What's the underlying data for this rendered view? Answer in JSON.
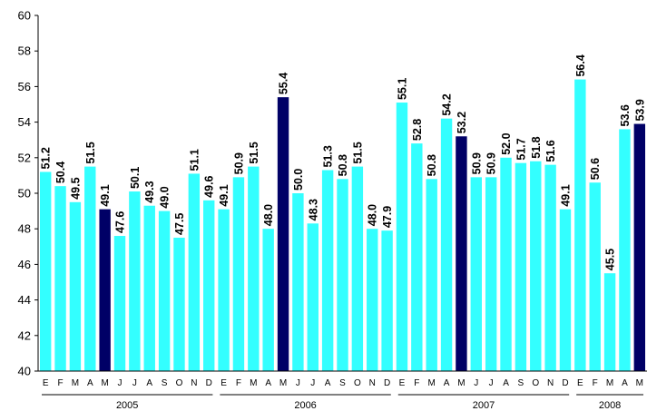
{
  "chart_data": {
    "type": "bar",
    "title": "",
    "xlabel": "",
    "ylabel": "",
    "ylim": [
      40,
      60
    ],
    "yticks": [
      40,
      42,
      44,
      46,
      48,
      50,
      52,
      54,
      56,
      58,
      60
    ],
    "grid": false,
    "legend": "none",
    "colors": {
      "bar": "#33ffff",
      "highlight": "#000066",
      "axis": "#000000"
    },
    "categories": [
      "E",
      "F",
      "M",
      "A",
      "M",
      "J",
      "J",
      "A",
      "S",
      "O",
      "N",
      "D",
      "E",
      "F",
      "M",
      "A",
      "M",
      "J",
      "J",
      "A",
      "S",
      "O",
      "N",
      "D",
      "E",
      "F",
      "M",
      "A",
      "M",
      "J",
      "J",
      "A",
      "S",
      "O",
      "N",
      "D",
      "E",
      "F",
      "M",
      "A",
      "M"
    ],
    "values": [
      51.2,
      50.4,
      49.5,
      51.5,
      49.1,
      47.6,
      50.1,
      49.3,
      49.0,
      47.5,
      51.1,
      49.6,
      49.1,
      50.9,
      51.5,
      48.0,
      55.4,
      50.0,
      48.3,
      51.3,
      50.8,
      51.5,
      48.0,
      47.9,
      55.1,
      52.8,
      50.8,
      54.2,
      53.2,
      50.9,
      50.9,
      52.0,
      51.7,
      51.8,
      51.6,
      49.1,
      56.4,
      50.6,
      45.5,
      53.6,
      53.9
    ],
    "data_labels": [
      "51.2",
      "50.4",
      "49.5",
      "51.5",
      "49.1",
      "47.6",
      "50.1",
      "49.3",
      "49.0",
      "47.5",
      "51.1",
      "49.6",
      "49.1",
      "50.9",
      "51.5",
      "48.0",
      "55.4",
      "50.0",
      "48.3",
      "51.3",
      "50.8",
      "51.5",
      "48.0",
      "47.9",
      "55.1",
      "52.8",
      "50.8",
      "54.2",
      "53.2",
      "50.9",
      "50.9",
      "52.0",
      "51.7",
      "51.8",
      "51.6",
      "49.1",
      "56.4",
      "50.6",
      "45.5",
      "53.6",
      "53.9"
    ],
    "highlighted_indices": [
      4,
      16,
      28,
      40
    ],
    "year_groups": [
      {
        "label": "2005",
        "start": 0,
        "count": 12
      },
      {
        "label": "2006",
        "start": 12,
        "count": 12
      },
      {
        "label": "2007",
        "start": 24,
        "count": 12
      },
      {
        "label": "2008",
        "start": 36,
        "count": 5
      }
    ]
  }
}
